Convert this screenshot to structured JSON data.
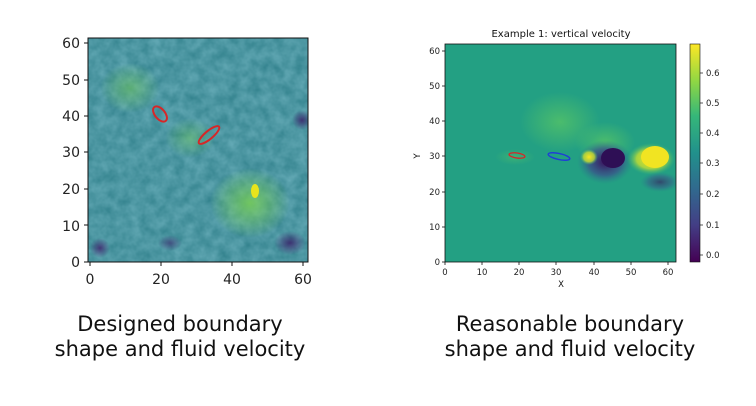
{
  "left_panel": {
    "y_ticks": [
      "0",
      "10",
      "20",
      "30",
      "40",
      "50",
      "60"
    ],
    "x_ticks": [
      "0",
      "20",
      "40",
      "60"
    ],
    "caption_lines": [
      "Designed boundary",
      "shape and fluid velocity"
    ],
    "boundary_color": "#d62728"
  },
  "right_panel": {
    "title": "Example 1: vertical velocity",
    "xlabel": "X",
    "ylabel": "Y",
    "y_ticks": [
      "0",
      "10",
      "20",
      "30",
      "40",
      "50",
      "60"
    ],
    "x_ticks": [
      "0",
      "10",
      "20",
      "30",
      "40",
      "50",
      "60"
    ],
    "colorbar_ticks": [
      "0.0",
      "0.1",
      "0.2",
      "0.3",
      "0.4",
      "0.5",
      "0.6"
    ],
    "caption_lines": [
      "Reasonable boundary",
      "shape and fluid velocity"
    ],
    "boundary_colors": [
      "#d62728",
      "#1f3fd6"
    ]
  }
}
